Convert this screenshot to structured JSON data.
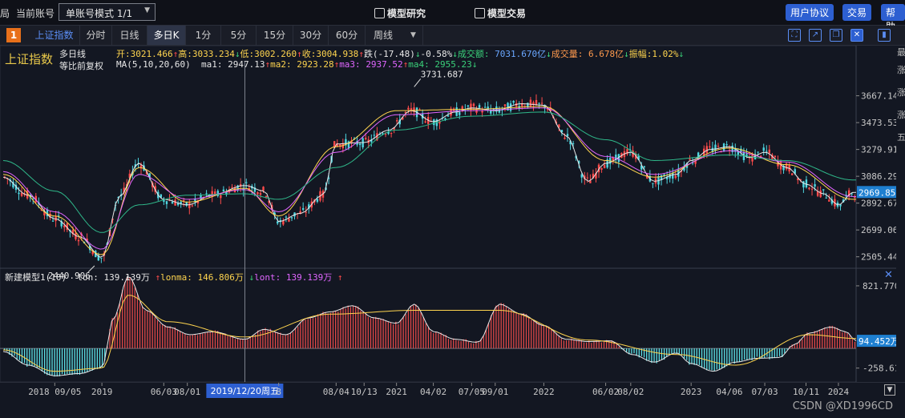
{
  "topbar": {
    "left_fragment": "局",
    "account_label": "当前账号",
    "account_select": "单账号模式 1/1",
    "link_research": "模型研究",
    "link_trade": "模型交易",
    "btn_agreement": "用户协议",
    "btn_trade": "交易",
    "btn_help": "帮助"
  },
  "period": {
    "badge": "1",
    "tabs": [
      "上证指数",
      "分时",
      "日线",
      "多日K",
      "1分",
      "5分",
      "15分",
      "30分",
      "60分",
      "周线"
    ],
    "active": "多日K"
  },
  "legend": {
    "index_name": "上证指数",
    "line1": "多日线",
    "line2": "等比前复权",
    "ma_name": "MA(5,10,20,60)",
    "open_label": "开:",
    "open": "3021.466",
    "high_label": "高:",
    "high": "3033.234",
    "low_label": "低:",
    "low": "3002.260",
    "close_label": "收:",
    "close": "3004.938",
    "chg_label": "跌(-17.48)",
    "pct": "-0.58%",
    "amount_label": "成交额:",
    "amount": "7031.670亿",
    "volume_label": "成交量:",
    "volume": "6.678亿",
    "amp_label": "振幅:",
    "amp": "1.02%",
    "ma1_label": "ma1:",
    "ma1": "2947.13",
    "ma2_label": "ma2:",
    "ma2": "2923.28",
    "ma3_label": "ma3:",
    "ma3": "2937.52",
    "ma4_label": "ma4:",
    "ma4": "2955.23"
  },
  "sub_legend": {
    "name": "新建模型1(10)",
    "lon_label": "lon:",
    "lon": "139.139万",
    "lonma_label": "lonma:",
    "lonma": "146.806万",
    "lont_label": "lont:",
    "lont": "139.139万"
  },
  "annotations": {
    "max_label": "3731.687",
    "min_label": "2440.906",
    "price_tag": "2969.851",
    "sub_tag": "94.452万",
    "cursor_date": "2019/12/20周五"
  },
  "right_strip_chars": [
    "最",
    "涨",
    "涨",
    "涨",
    "五"
  ],
  "watermark": "CSDN @XD1996CD",
  "colors": {
    "background": "#131722",
    "up": "#ff4b4b",
    "down": "#3ad17a",
    "ma1": "#e8e8e8",
    "ma2": "#ffd54f",
    "ma3": "#e066ff",
    "ma4": "#2fb88a",
    "accent": "#2d5fd1"
  },
  "chart_data": [
    {
      "type": "candlestick",
      "title": "上证指数",
      "ylim": [
        2440,
        3740
      ],
      "y_ticks": [
        "3667.148",
        "3473.531",
        "3279.914",
        "3086.296",
        "2892.679",
        "2699.062",
        "2505.445"
      ],
      "y_tick_values": [
        3667.148,
        3473.531,
        3279.914,
        3086.296,
        2892.679,
        2699.062,
        2505.445
      ],
      "x_tick_labels": [
        "2018 09/05",
        "2019",
        "06/03",
        "08/01",
        "2019/12/20周五",
        "8",
        "08/04",
        "10/13",
        "2021",
        "04/02",
        "07/05",
        "09/01",
        "2022",
        "06/02",
        "08/02",
        "2023",
        "04/06",
        "07/03",
        "10/11",
        "2024"
      ],
      "x_tick_dates": [
        2018.68,
        2019.0,
        2019.42,
        2019.58,
        2019.97,
        2020.2,
        2020.59,
        2020.78,
        2021.0,
        2021.25,
        2021.51,
        2021.67,
        2022.0,
        2022.42,
        2022.59,
        2023.0,
        2023.26,
        2023.5,
        2023.78,
        2024.0
      ],
      "x_range": [
        2018.33,
        2024.12
      ],
      "series": [
        {
          "name": "ma1",
          "x": [
            2018.33,
            2018.5,
            2018.68,
            2018.85,
            2019.0,
            2019.12,
            2019.25,
            2019.42,
            2019.58,
            2019.75,
            2019.97,
            2020.1,
            2020.2,
            2020.35,
            2020.5,
            2020.59,
            2020.78,
            2020.95,
            2021.1,
            2021.25,
            2021.4,
            2021.51,
            2021.67,
            2021.85,
            2022.0,
            2022.15,
            2022.3,
            2022.42,
            2022.59,
            2022.75,
            2022.9,
            2023.0,
            2023.13,
            2023.26,
            2023.4,
            2023.5,
            2023.65,
            2023.78,
            2023.9,
            2024.0,
            2024.1
          ],
          "values": [
            3080,
            2950,
            2780,
            2650,
            2500,
            2940,
            3180,
            2920,
            2880,
            2950,
            3020,
            2980,
            2760,
            2820,
            2950,
            3320,
            3330,
            3420,
            3560,
            3480,
            3550,
            3580,
            3560,
            3610,
            3600,
            3380,
            3050,
            3180,
            3260,
            3050,
            3100,
            3200,
            3280,
            3300,
            3220,
            3260,
            3150,
            3030,
            2960,
            2880,
            2970
          ]
        },
        {
          "name": "ma2",
          "x": [
            2018.33,
            2018.68,
            2019.0,
            2019.25,
            2019.58,
            2019.97,
            2020.2,
            2020.59,
            2021.0,
            2021.51,
            2022.0,
            2022.42,
            2022.75,
            2023.26,
            2023.65,
            2024.1
          ],
          "values": [
            3100,
            2800,
            2520,
            3150,
            2900,
            3000,
            2800,
            3300,
            3560,
            3570,
            3590,
            3200,
            3080,
            3290,
            3170,
            2920
          ]
        },
        {
          "name": "ma3",
          "x": [
            2018.33,
            2018.68,
            2019.0,
            2019.25,
            2019.58,
            2019.97,
            2020.2,
            2020.59,
            2021.0,
            2021.51,
            2022.0,
            2022.42,
            2022.75,
            2023.26,
            2023.65,
            2024.1
          ],
          "values": [
            3120,
            2830,
            2560,
            3100,
            2920,
            2990,
            2830,
            3260,
            3530,
            3560,
            3580,
            3230,
            3100,
            3270,
            3190,
            2940
          ]
        },
        {
          "name": "ma4",
          "x": [
            2018.33,
            2018.68,
            2019.0,
            2019.25,
            2019.58,
            2019.97,
            2020.2,
            2020.59,
            2021.0,
            2021.51,
            2022.0,
            2022.42,
            2022.75,
            2023.26,
            2023.65,
            2024.1
          ],
          "values": [
            3200,
            2980,
            2680,
            2880,
            2950,
            2960,
            2920,
            3150,
            3420,
            3520,
            3550,
            3350,
            3200,
            3240,
            3200,
            3060
          ]
        }
      ],
      "markers": {
        "max": 3731.687,
        "min": 2440.906,
        "last": 2969.851
      }
    },
    {
      "type": "bar",
      "title": "新建模型1(10)",
      "ylim": [
        -420,
        1000
      ],
      "y_ticks": [
        "821.770",
        "-258.610"
      ],
      "y_tick_values": [
        821.77,
        -258.61
      ],
      "x_range": [
        2018.33,
        2024.12
      ],
      "series": [
        {
          "name": "lon",
          "x": [
            2018.33,
            2018.5,
            2018.68,
            2018.85,
            2019.0,
            2019.08,
            2019.18,
            2019.3,
            2019.45,
            2019.6,
            2019.75,
            2019.97,
            2020.1,
            2020.25,
            2020.4,
            2020.55,
            2020.7,
            2020.85,
            2021.0,
            2021.12,
            2021.25,
            2021.4,
            2021.55,
            2021.7,
            2021.85,
            2022.0,
            2022.15,
            2022.3,
            2022.45,
            2022.6,
            2022.75,
            2022.9,
            2023.0,
            2023.15,
            2023.3,
            2023.45,
            2023.6,
            2023.7,
            2023.8,
            2023.95,
            2024.05,
            2024.12
          ],
          "values": [
            -40,
            -220,
            -360,
            -330,
            -250,
            400,
            950,
            500,
            280,
            180,
            220,
            120,
            250,
            180,
            400,
            480,
            560,
            400,
            330,
            580,
            220,
            120,
            80,
            580,
            450,
            300,
            120,
            90,
            100,
            -80,
            -180,
            -60,
            -200,
            -300,
            -180,
            -130,
            -120,
            50,
            200,
            280,
            220,
            100
          ]
        },
        {
          "name": "lonma",
          "x": [
            2018.33,
            2018.68,
            2019.0,
            2019.18,
            2019.45,
            2019.97,
            2020.55,
            2021.12,
            2021.7,
            2022.3,
            2022.9,
            2023.3,
            2023.8,
            2024.12
          ],
          "values": [
            -20,
            -300,
            -260,
            700,
            350,
            150,
            450,
            500,
            500,
            110,
            -80,
            -220,
            180,
            130
          ]
        }
      ],
      "markers": {
        "last": 94.452
      }
    }
  ]
}
